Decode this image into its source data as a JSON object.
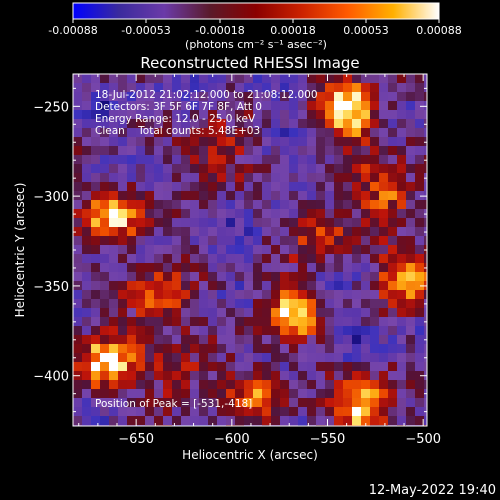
{
  "colorbar": {
    "tick_labels": [
      "-0.00088",
      "-0.00053",
      "-0.00018",
      "0.00018",
      "0.00053",
      "0.00088"
    ],
    "unit_label": "(photons cm⁻² s⁻¹ asec⁻²)",
    "colors": [
      "#0000ff",
      "#3a2a9e",
      "#6b3aa8",
      "#5a1a2a",
      "#8b0000",
      "#cc2200",
      "#ff5a00",
      "#ffb000",
      "#ffffff"
    ]
  },
  "image": {
    "title": "Reconstructed RHESSI Image",
    "info_lines": [
      "18-Jul-2012 21:02:12.000 to 21:08:12.000",
      "Detectors: 3F 5F 6F 7F 8F, Att 0",
      "Energy Range: 12.0 - 25.0 keV",
      "Clean    Total counts: 5.48E+03"
    ],
    "peak_text": "Position of Peak = [-531,-418]",
    "timestamp": "12-May-2022 19:40"
  },
  "chart_data": {
    "type": "heatmap",
    "title": "Reconstructed RHESSI Image",
    "xlabel": "Heliocentric X (arcsec)",
    "ylabel": "Heliocentric Y (arcsec)",
    "xlim": [
      -683,
      -498
    ],
    "ylim": [
      -428,
      -232
    ],
    "x_ticks": [
      -650,
      -600,
      -550,
      -500
    ],
    "y_ticks": [
      -250,
      -300,
      -350,
      -400
    ],
    "x_tick_labels": [
      "−650",
      "−600",
      "−550",
      "−500"
    ],
    "y_tick_labels": [
      "−250",
      "−300",
      "−350",
      "−400"
    ],
    "value_range": [
      -0.00088,
      0.00088
    ],
    "peak": {
      "x": -531,
      "y": -418
    },
    "hotspots": [
      {
        "x": -537,
        "y": -253,
        "strength": 1.0
      },
      {
        "x": -660,
        "y": -311,
        "strength": 0.85
      },
      {
        "x": -668,
        "y": -392,
        "strength": 0.9
      },
      {
        "x": -571,
        "y": -365,
        "strength": 0.8
      },
      {
        "x": -637,
        "y": -358,
        "strength": 0.75
      },
      {
        "x": -507,
        "y": -342,
        "strength": 0.85
      },
      {
        "x": -531,
        "y": -418,
        "strength": 1.0
      },
      {
        "x": -609,
        "y": -277,
        "strength": 0.6
      },
      {
        "x": -553,
        "y": -321,
        "strength": 0.55
      },
      {
        "x": -587,
        "y": -411,
        "strength": 0.6
      },
      {
        "x": -518,
        "y": -296,
        "strength": 0.7
      },
      {
        "x": -628,
        "y": -400,
        "strength": 0.55
      }
    ],
    "grid": false
  }
}
